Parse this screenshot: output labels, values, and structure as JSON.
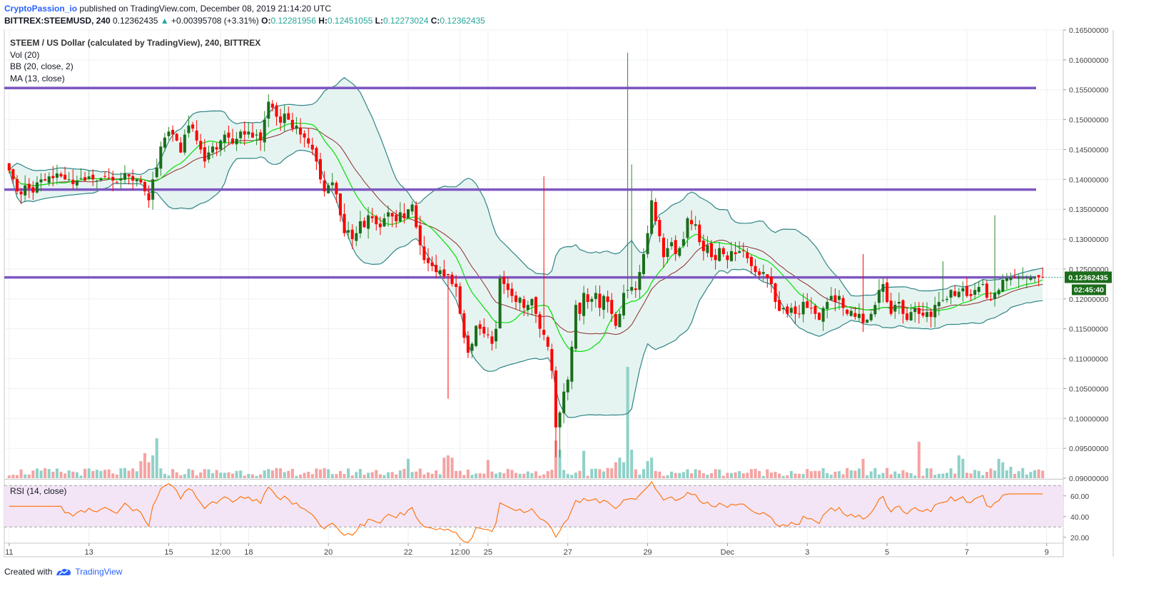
{
  "header": {
    "author": "CryptoPassion_io",
    "published": "published on TradingView.com, December 08, 2019 21:14:20 UTC",
    "symbol": "BITTREX:STEEMUSD, 240",
    "last": "0.12362435",
    "change_arrow": "▲",
    "change": "+0.00395708 (+3.31%)",
    "o_label": "O:",
    "o": "0.12281956",
    "h_label": "H:",
    "h": "0.12451055",
    "l_label": "L:",
    "l": "0.12273024",
    "c_label": "C:",
    "c": "0.12362435"
  },
  "legend": {
    "main": "STEEM / US Dollar (calculated by TradingView), 240, BITTREX",
    "vol": "Vol (20)",
    "bb": "BB (20, close, 2)",
    "ma": "MA (13, close)",
    "rsi": "RSI (14, close)"
  },
  "footer": {
    "created": "Created with",
    "brand": "TradingView"
  },
  "colors": {
    "up": "#26a69a",
    "up_candle": "#1b6d1b",
    "down": "#ff0000",
    "bb": "#2f8585",
    "bb_fill": "#e6f4f1",
    "ma_green": "#00e000",
    "bb_basis": "#8b2e2e",
    "line_purple": "#7e57c2",
    "rsi": "#ff6d00",
    "rsi_fill": "#f3e5f5"
  },
  "chart_data": {
    "type": "candlestick",
    "price_axis": {
      "ticks": [
        "0.16500000",
        "0.16000000",
        "0.15500000",
        "0.15000000",
        "0.14500000",
        "0.14000000",
        "0.13500000",
        "0.13000000",
        "0.12500000",
        "0.12000000",
        "0.11500000",
        "0.11000000",
        "0.10500000",
        "0.10000000",
        "0.09500000",
        "0.09000000"
      ],
      "range": [
        0.09,
        0.165
      ],
      "last_label": "0.12362435",
      "countdown": "02:45:40"
    },
    "x_axis": {
      "ticks": [
        "11",
        "13",
        "15",
        "12:00",
        "18",
        "20",
        "22",
        "12:00",
        "25",
        "27",
        "29",
        "Dec",
        "3",
        "5",
        "7",
        "9"
      ],
      "tick_bars": [
        0,
        20,
        40,
        53,
        60,
        80,
        100,
        113,
        120,
        140,
        160,
        180,
        200,
        220,
        240,
        260
      ],
      "bar_count": 260
    },
    "horizontal_lines": [
      0.1553,
      0.1383,
      0.1236
    ],
    "rsi": {
      "ticks": [
        "60.00",
        "40.00",
        "20.00"
      ],
      "range": [
        15,
        75
      ],
      "bands": [
        70,
        30
      ]
    },
    "closes": [
      0.1415,
      0.14,
      0.138,
      0.1375,
      0.139,
      0.1385,
      0.1378,
      0.1395,
      0.14,
      0.1398,
      0.1405,
      0.1402,
      0.141,
      0.1405,
      0.14,
      0.14,
      0.1392,
      0.1398,
      0.1402,
      0.1398,
      0.1405,
      0.14,
      0.1398,
      0.1402,
      0.1405,
      0.1402,
      0.1398,
      0.1395,
      0.1402,
      0.141,
      0.1405,
      0.1398,
      0.14,
      0.1395,
      0.138,
      0.1365,
      0.14,
      0.142,
      0.1455,
      0.147,
      0.148,
      0.1475,
      0.1465,
      0.1445,
      0.1475,
      0.149,
      0.1485,
      0.1465,
      0.145,
      0.143,
      0.1445,
      0.1455,
      0.145,
      0.1465,
      0.1475,
      0.147,
      0.146,
      0.1468,
      0.148,
      0.1475,
      0.148,
      0.147,
      0.1475,
      0.1465,
      0.15,
      0.153,
      0.152,
      0.1505,
      0.1495,
      0.151,
      0.15,
      0.1485,
      0.149,
      0.1475,
      0.147,
      0.146,
      0.145,
      0.143,
      0.14,
      0.138,
      0.139,
      0.1395,
      0.1375,
      0.134,
      0.131,
      0.1315,
      0.13,
      0.131,
      0.133,
      0.132,
      0.134,
      0.1335,
      0.1325,
      0.132,
      0.1335,
      0.1345,
      0.1338,
      0.133,
      0.1345,
      0.1335,
      0.135,
      0.1358,
      0.132,
      0.129,
      0.1265,
      0.126,
      0.1255,
      0.1245,
      0.1248,
      0.1238,
      0.124,
      0.1225,
      0.122,
      0.1175,
      0.1135,
      0.111,
      0.1125,
      0.1155,
      0.115,
      0.1142,
      0.114,
      0.1125,
      0.115,
      0.1235,
      0.1225,
      0.1215,
      0.1205,
      0.1195,
      0.1202,
      0.1185,
      0.119,
      0.12,
      0.1175,
      0.115,
      0.114,
      0.112,
      0.108,
      0.0985,
      0.101,
      0.1045,
      0.1065,
      0.112,
      0.119,
      0.1175,
      0.121,
      0.1195,
      0.12,
      0.121,
      0.1185,
      0.1205,
      0.1195,
      0.1175,
      0.1155,
      0.1175,
      0.121,
      0.1215,
      0.122,
      0.1215,
      0.1245,
      0.1275,
      0.131,
      0.1365,
      0.133,
      0.1305,
      0.127,
      0.1285,
      0.1295,
      0.1275,
      0.1285,
      0.13,
      0.1335,
      0.1325,
      0.1325,
      0.1295,
      0.128,
      0.129,
      0.127,
      0.1265,
      0.1285,
      0.1275,
      0.1265,
      0.128,
      0.1275,
      0.128,
      0.128,
      0.1268,
      0.1255,
      0.1245,
      0.124,
      0.1245,
      0.1235,
      0.1225,
      0.1195,
      0.118,
      0.1185,
      0.1175,
      0.1185,
      0.1175,
      0.1175,
      0.1195,
      0.1185,
      0.1185,
      0.1175,
      0.1165,
      0.1185,
      0.1195,
      0.1205,
      0.1195,
      0.1205,
      0.1185,
      0.1175,
      0.118,
      0.117,
      0.1175,
      0.116,
      0.1165,
      0.1175,
      0.119,
      0.1215,
      0.1225,
      0.1195,
      0.1175,
      0.119,
      0.1195,
      0.1175,
      0.1165,
      0.1178,
      0.1185,
      0.1175,
      0.1172,
      0.1178,
      0.117,
      0.119,
      0.1195,
      0.1198,
      0.12,
      0.1215,
      0.1205,
      0.1212,
      0.1218,
      0.1205,
      0.1205,
      0.1215,
      0.122,
      0.1225,
      0.1202,
      0.1198,
      0.121,
      0.1215,
      0.1232,
      0.1235,
      0.1236
    ]
  }
}
